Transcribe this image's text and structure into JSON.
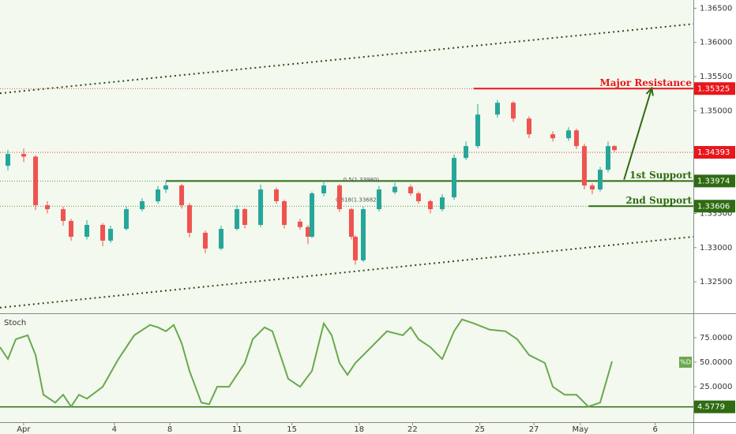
{
  "chart_data": {
    "type": "candlestick",
    "xlim": [
      0,
      100
    ],
    "xticks": [
      {
        "value": 3.4,
        "label": "Apr"
      },
      {
        "value": 16.5,
        "label": "4"
      },
      {
        "value": 24.5,
        "label": "8"
      },
      {
        "value": 34.2,
        "label": "11"
      },
      {
        "value": 42.1,
        "label": "15"
      },
      {
        "value": 51.8,
        "label": "18"
      },
      {
        "value": 59.5,
        "label": "22"
      },
      {
        "value": 69.2,
        "label": "25"
      },
      {
        "value": 77.0,
        "label": "27"
      },
      {
        "value": 83.7,
        "label": "May"
      },
      {
        "value": 94.5,
        "label": "6"
      }
    ],
    "ylim": [
      1.3204,
      1.3662
    ],
    "yticks": [
      {
        "value": 1.365,
        "label": "1.36500"
      },
      {
        "value": 1.36,
        "label": "1.36000"
      },
      {
        "value": 1.355,
        "label": "1.35500"
      },
      {
        "value": 1.35,
        "label": "1.35000"
      },
      {
        "value": 1.335,
        "label": "1.33500"
      },
      {
        "value": 1.33,
        "label": "1.33000"
      },
      {
        "value": 1.325,
        "label": "1.32500"
      }
    ],
    "x": [
      1.14,
      3.42,
      5.13,
      6.83,
      9.11,
      10.25,
      12.53,
      14.81,
      15.95,
      18.22,
      20.5,
      22.78,
      23.92,
      26.2,
      27.33,
      29.61,
      31.89,
      34.17,
      35.31,
      37.59,
      39.86,
      41.0,
      43.28,
      44.42,
      44.99,
      46.7,
      48.97,
      50.68,
      51.25,
      52.39,
      54.67,
      56.95,
      59.23,
      60.36,
      62.07,
      63.78,
      65.49,
      67.2,
      68.91,
      71.75,
      74.03,
      76.31,
      79.73,
      82.0,
      83.14,
      84.28,
      85.42,
      86.56,
      87.7,
      88.61
    ],
    "open": [
      1.34196,
      1.34369,
      1.3433,
      1.3362,
      1.33562,
      1.3339,
      1.33159,
      1.33332,
      1.33102,
      1.33274,
      1.33562,
      1.33678,
      1.3385,
      1.33908,
      1.3362,
      1.33217,
      1.32986,
      1.33274,
      1.33562,
      1.33332,
      1.3385,
      1.33678,
      1.3338,
      1.333,
      1.33159,
      1.33793,
      1.33908,
      1.33562,
      1.33159,
      1.32814,
      1.33562,
      1.3381,
      1.3389,
      1.33793,
      1.33678,
      1.33562,
      1.33735,
      1.34311,
      1.34484,
      1.34945,
      1.35118,
      1.34887,
      1.34657,
      1.34599,
      1.34714,
      1.34484,
      1.33908,
      1.3385,
      1.34138,
      1.34484
    ],
    "high": [
      1.3443,
      1.3445,
      1.3435,
      1.3368,
      1.336,
      1.3342,
      1.334,
      1.3336,
      1.3332,
      1.336,
      1.3372,
      1.339,
      1.3396,
      1.3393,
      1.3365,
      1.3325,
      1.3332,
      1.3362,
      1.3358,
      1.3392,
      1.3388,
      1.337,
      1.3342,
      1.3333,
      1.3382,
      1.3398,
      1.3393,
      1.3358,
      1.3318,
      1.336,
      1.339,
      1.3395,
      1.3392,
      1.3382,
      1.337,
      1.3378,
      1.3436,
      1.3455,
      1.351,
      1.3516,
      1.3514,
      1.3492,
      1.347,
      1.3476,
      1.3474,
      1.3452,
      1.3394,
      1.3418,
      1.3455,
      1.345
    ],
    "low": [
      1.3413,
      1.3425,
      1.3355,
      1.335,
      1.3332,
      1.331,
      1.3312,
      1.3302,
      1.3307,
      1.3325,
      1.3353,
      1.3364,
      1.338,
      1.3357,
      1.3315,
      1.3292,
      1.3296,
      1.3325,
      1.3328,
      1.333,
      1.3364,
      1.3328,
      1.3326,
      1.3305,
      1.3314,
      1.3375,
      1.3352,
      1.3312,
      1.3275,
      1.3279,
      1.3353,
      1.3378,
      1.3376,
      1.3364,
      1.335,
      1.3353,
      1.337,
      1.3428,
      1.3445,
      1.349,
      1.3484,
      1.346,
      1.3455,
      1.3456,
      1.3444,
      1.3385,
      1.3378,
      1.3382,
      1.341,
      1.344
    ],
    "close": [
      1.34369,
      1.3433,
      1.3362,
      1.33562,
      1.3339,
      1.33159,
      1.33332,
      1.33102,
      1.33274,
      1.33562,
      1.33678,
      1.3385,
      1.33908,
      1.3362,
      1.33217,
      1.32986,
      1.33274,
      1.33562,
      1.33332,
      1.3385,
      1.33678,
      1.33332,
      1.333,
      1.33159,
      1.33793,
      1.33908,
      1.33562,
      1.33159,
      1.32814,
      1.33562,
      1.3385,
      1.3389,
      1.33793,
      1.33678,
      1.33562,
      1.33735,
      1.34311,
      1.34484,
      1.34945,
      1.35118,
      1.34887,
      1.34657,
      1.34599,
      1.34714,
      1.34484,
      1.33908,
      1.3385,
      1.34138,
      1.34484,
      1.34426
    ],
    "up_color": "#26a69a",
    "down_color": "#ef5350",
    "channel": [
      {
        "x": [
          0,
          100
        ],
        "y": [
          1.35256,
          1.3627
        ]
      },
      {
        "x": [
          0,
          100
        ],
        "y": [
          1.32122,
          1.33159
        ]
      }
    ],
    "levels": [
      {
        "value": 1.35325,
        "label": "1.35325",
        "text": "Major Resistance",
        "color": "#e8161b",
        "x_start": 68.3
      },
      {
        "value": 1.34393,
        "label": "1.34393",
        "color": "#e8161b"
      },
      {
        "value": 1.33974,
        "label": "1.33974",
        "text": "1st Support",
        "color": "#2e6b12",
        "x_start": 23.9
      },
      {
        "value": 1.33606,
        "label": "1.33606",
        "text": "2nd Support",
        "color": "#2e6b12",
        "x_start": 84.9
      }
    ],
    "fib_labels": [
      {
        "text": "0.5(1.33980)",
        "x": 49.5,
        "value": 1.3398
      },
      {
        "text": "0.618(1.33682)",
        "x": 48.4,
        "value": 1.33682
      }
    ],
    "arrow": {
      "x": [
        90,
        94
      ],
      "y": [
        1.33993,
        1.35332
      ]
    },
    "stoch": {
      "title": "Stoch",
      "ylim": [
        -11,
        99
      ],
      "yticks": [
        {
          "value": 75,
          "label": "75.0000"
        },
        {
          "value": 50,
          "label": "50.0000"
        },
        {
          "value": 25,
          "label": "25.0000"
        }
      ],
      "x": [
        0,
        1.14,
        2.28,
        3.99,
        5.13,
        6.26,
        7.97,
        9.11,
        10.25,
        11.39,
        12.53,
        14.81,
        17.08,
        19.36,
        21.64,
        22.78,
        23.92,
        25.06,
        26.2,
        27.33,
        29.04,
        30.18,
        31.32,
        33.03,
        35.31,
        36.45,
        38.15,
        39.29,
        40.43,
        41.57,
        43.28,
        44.99,
        46.7,
        47.84,
        48.97,
        50.11,
        51.25,
        53.53,
        55.81,
        58.09,
        59.23,
        60.36,
        62.07,
        63.78,
        65.49,
        66.63,
        68.34,
        70.62,
        72.89,
        74.6,
        76.31,
        78.59,
        79.73,
        81.44,
        83.14,
        84.85,
        86.56,
        88.27
      ],
      "values": [
        65.3,
        53.2,
        73.4,
        77.4,
        57.3,
        16.9,
        8.9,
        16.9,
        4.8,
        16.9,
        12.9,
        25.0,
        53.2,
        77.4,
        87.9,
        85.5,
        81.5,
        87.9,
        69.4,
        41.1,
        8.9,
        7.3,
        25.0,
        25.0,
        49.2,
        73.4,
        85.5,
        81.5,
        57.3,
        33.1,
        25.0,
        41.1,
        89.5,
        77.4,
        49.2,
        37.1,
        49.2,
        65.3,
        81.5,
        77.4,
        85.5,
        73.4,
        65.3,
        53.2,
        81.5,
        93.5,
        89.5,
        83.1,
        81.5,
        73.4,
        57.3,
        49.2,
        25.0,
        16.9,
        16.9,
        4.8,
        8.9,
        50.8
      ],
      "color": "#6aa84f",
      "level": {
        "value": 4.5779,
        "label": "4.5779",
        "color": "#2e6b12"
      },
      "series_label": {
        "text": "%D",
        "value": 50
      }
    }
  }
}
